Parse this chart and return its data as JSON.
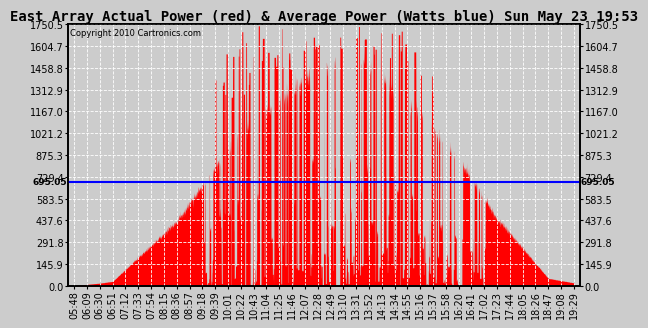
{
  "title": "East Array Actual Power (red) & Average Power (Watts blue) Sun May 23 19:53",
  "copyright": "Copyright 2010 Cartronics.com",
  "avg_power": 695.05,
  "ymax": 1750.5,
  "ymin": 0.0,
  "yticks": [
    0.0,
    145.9,
    291.8,
    437.6,
    583.5,
    729.4,
    875.3,
    1021.2,
    1167.0,
    1312.9,
    1458.8,
    1604.7,
    1750.5
  ],
  "bg_color": "#cccccc",
  "x_labels": [
    "05:48",
    "06:09",
    "06:30",
    "06:51",
    "07:12",
    "07:33",
    "07:54",
    "08:15",
    "08:36",
    "08:57",
    "09:18",
    "09:39",
    "10:01",
    "10:22",
    "10:43",
    "11:04",
    "11:25",
    "11:46",
    "12:07",
    "12:28",
    "12:49",
    "13:10",
    "13:31",
    "13:52",
    "14:13",
    "14:34",
    "14:55",
    "15:16",
    "15:37",
    "15:58",
    "16:20",
    "16:41",
    "17:02",
    "17:23",
    "17:44",
    "18:05",
    "18:26",
    "18:47",
    "19:08",
    "19:29"
  ],
  "line_color": "#0000ff",
  "fill_color": "#ff0000",
  "grid_color": "#ffffff",
  "title_fontsize": 10,
  "tick_fontsize": 7
}
